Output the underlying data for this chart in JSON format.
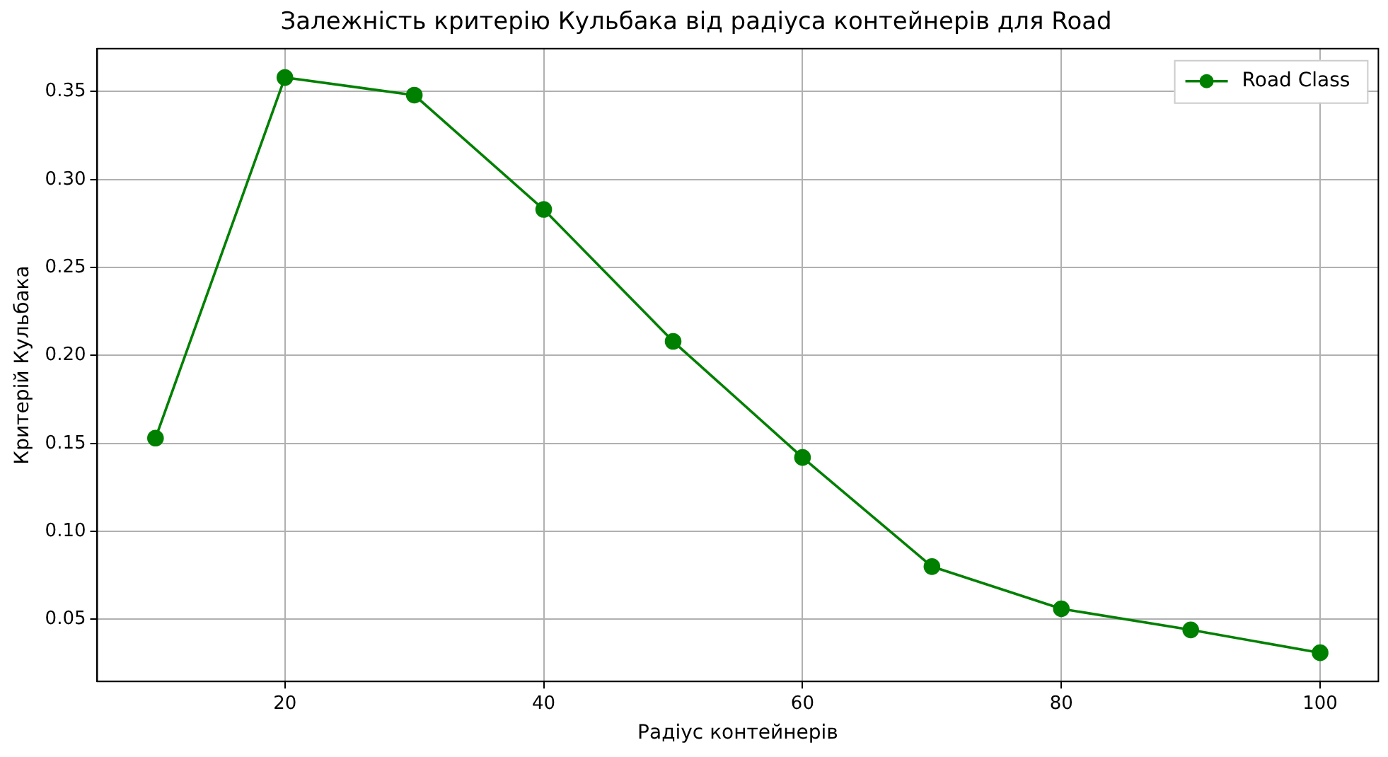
{
  "chart_data": {
    "type": "line",
    "title": "Залежність критерію Кульбака від радіуса контейнерів для Road",
    "xlabel": "Радіус контейнерів",
    "ylabel": "Критерій Кульбака",
    "x": [
      10,
      20,
      30,
      40,
      50,
      60,
      70,
      80,
      90,
      100
    ],
    "series": [
      {
        "name": "Road Class",
        "color": "#008000",
        "values": [
          0.153,
          0.358,
          0.348,
          0.283,
          0.208,
          0.142,
          0.08,
          0.056,
          0.044,
          0.031
        ]
      }
    ],
    "xlim": [
      5.5,
      104.5
    ],
    "xticks": [
      20,
      40,
      60,
      80,
      100
    ],
    "ylim": [
      0.0147,
      0.3744
    ],
    "yticks": [
      {
        "value": 0.05,
        "label": "0.05"
      },
      {
        "value": 0.1,
        "label": "0.10"
      },
      {
        "value": 0.15,
        "label": "0.15"
      },
      {
        "value": 0.2,
        "label": "0.20"
      },
      {
        "value": 0.25,
        "label": "0.25"
      },
      {
        "value": 0.3,
        "label": "0.30"
      },
      {
        "value": 0.35,
        "label": "0.35"
      }
    ],
    "grid": true,
    "legend": "top right",
    "marker": "circle",
    "line_style": "solid"
  }
}
